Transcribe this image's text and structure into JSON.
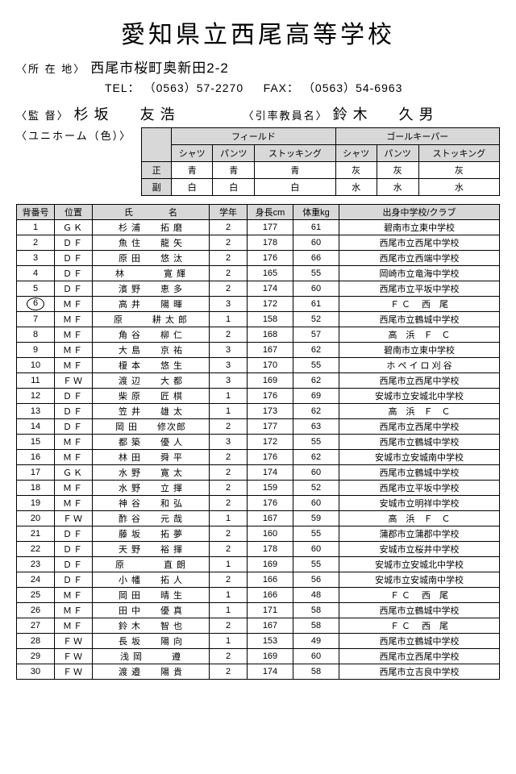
{
  "school_name": "愛知県立西尾高等学校",
  "address_label": "〈所 在 地〉",
  "address": "西尾市桜町奥新田2-2",
  "tel_label": "TEL：",
  "tel": "（0563）57-2270",
  "fax_label": "FAX：",
  "fax": "（0563）54-6963",
  "coach_label": "〈監 督〉",
  "coach_name": "杉 坂　　友 浩",
  "leader_label": "〈引率教員名〉",
  "leader_name": "鈴 木　　久 男",
  "uniform_label": "〈ユニホーム（色）〉",
  "uniform": {
    "group_headers": [
      "フィールド",
      "ゴールキーパー"
    ],
    "sub_headers": [
      "シャツ",
      "パンツ",
      "ストッキング",
      "シャツ",
      "パンツ",
      "ストッキング"
    ],
    "rows": [
      {
        "label": "正",
        "values": [
          "青",
          "青",
          "青",
          "灰",
          "灰",
          "灰"
        ]
      },
      {
        "label": "副",
        "values": [
          "白",
          "白",
          "白",
          "水",
          "水",
          "水"
        ]
      }
    ]
  },
  "roster_headers": {
    "num": "背番号",
    "pos": "位置",
    "name": "氏　　　　名",
    "grade": "学年",
    "height": "身長cm",
    "weight": "体重kg",
    "origin": "出身中学校/クラブ"
  },
  "roster": [
    {
      "num": "1",
      "captain": false,
      "pos": "ＧＫ",
      "name": "杉 浦　　拓 磨",
      "grade": "2",
      "h": "177",
      "w": "61",
      "origin": "碧南市立東中学校"
    },
    {
      "num": "2",
      "captain": false,
      "pos": "ＤＦ",
      "name": "魚 住　　龍 矢",
      "grade": "2",
      "h": "178",
      "w": "60",
      "origin": "西尾市立西尾中学校"
    },
    {
      "num": "3",
      "captain": false,
      "pos": "ＤＦ",
      "name": "原 田　　悠 汰",
      "grade": "2",
      "h": "176",
      "w": "66",
      "origin": "西尾市立西端中学校"
    },
    {
      "num": "4",
      "captain": false,
      "pos": "ＤＦ",
      "name": "林　　　　寛 輝",
      "grade": "2",
      "h": "165",
      "w": "55",
      "origin": "岡崎市立竜海中学校"
    },
    {
      "num": "5",
      "captain": false,
      "pos": "ＤＦ",
      "name": "濱 野　　恵 多",
      "grade": "2",
      "h": "174",
      "w": "60",
      "origin": "西尾市立平坂中学校"
    },
    {
      "num": "6",
      "captain": true,
      "pos": "ＭＦ",
      "name": "高 井　　陽 暉",
      "grade": "3",
      "h": "172",
      "w": "61",
      "origin": "Ｆ Ｃ 　西　尾"
    },
    {
      "num": "7",
      "captain": false,
      "pos": "ＭＦ",
      "name": "原　　　耕 太 郎",
      "grade": "1",
      "h": "158",
      "w": "52",
      "origin": "西尾市立鶴城中学校"
    },
    {
      "num": "8",
      "captain": false,
      "pos": "ＭＦ",
      "name": "角 谷　　柳 仁",
      "grade": "2",
      "h": "168",
      "w": "57",
      "origin": "高　浜　Ｆ　Ｃ"
    },
    {
      "num": "9",
      "captain": false,
      "pos": "ＭＦ",
      "name": "大 島　　京 祐",
      "grade": "3",
      "h": "167",
      "w": "62",
      "origin": "碧南市立東中学校"
    },
    {
      "num": "10",
      "captain": false,
      "pos": "ＭＦ",
      "name": "榎 本　　悠 生",
      "grade": "3",
      "h": "170",
      "w": "55",
      "origin": "ホ ペ イ ロ 刈 谷"
    },
    {
      "num": "11",
      "captain": false,
      "pos": "ＦＷ",
      "name": "渡 辺　　大 都",
      "grade": "3",
      "h": "169",
      "w": "62",
      "origin": "西尾市立西尾中学校"
    },
    {
      "num": "12",
      "captain": false,
      "pos": "ＤＦ",
      "name": "柴 原　　匠 棋",
      "grade": "1",
      "h": "176",
      "w": "69",
      "origin": "安城市立安城北中学校"
    },
    {
      "num": "13",
      "captain": false,
      "pos": "ＤＦ",
      "name": "笠 井　　雄 太",
      "grade": "1",
      "h": "173",
      "w": "62",
      "origin": "高　浜　Ｆ　Ｃ"
    },
    {
      "num": "14",
      "captain": false,
      "pos": "ＤＦ",
      "name": "岡 田　　修次郎",
      "grade": "2",
      "h": "177",
      "w": "63",
      "origin": "西尾市立西尾中学校"
    },
    {
      "num": "15",
      "captain": false,
      "pos": "ＭＦ",
      "name": "都 築　　優 人",
      "grade": "3",
      "h": "172",
      "w": "55",
      "origin": "西尾市立鶴城中学校"
    },
    {
      "num": "16",
      "captain": false,
      "pos": "ＭＦ",
      "name": "林 田　　舜 平",
      "grade": "2",
      "h": "176",
      "w": "62",
      "origin": "安城市立安城南中学校"
    },
    {
      "num": "17",
      "captain": false,
      "pos": "ＧＫ",
      "name": "水 野　　寛 太",
      "grade": "2",
      "h": "174",
      "w": "60",
      "origin": "西尾市立鶴城中学校"
    },
    {
      "num": "18",
      "captain": false,
      "pos": "ＭＦ",
      "name": "水 野　　立 揮",
      "grade": "2",
      "h": "159",
      "w": "52",
      "origin": "西尾市立平坂中学校"
    },
    {
      "num": "19",
      "captain": false,
      "pos": "ＭＦ",
      "name": "神 谷　　和 弘",
      "grade": "2",
      "h": "176",
      "w": "60",
      "origin": "安城市立明祥中学校"
    },
    {
      "num": "20",
      "captain": false,
      "pos": "ＦＷ",
      "name": "酢 谷　　元 哉",
      "grade": "1",
      "h": "167",
      "w": "59",
      "origin": "高　浜　Ｆ　Ｃ"
    },
    {
      "num": "21",
      "captain": false,
      "pos": "ＤＦ",
      "name": "藤 坂　　拓 夢",
      "grade": "2",
      "h": "160",
      "w": "55",
      "origin": "蒲郡市立蒲郡中学校"
    },
    {
      "num": "22",
      "captain": false,
      "pos": "ＤＦ",
      "name": "天 野　　裕 揮",
      "grade": "2",
      "h": "178",
      "w": "60",
      "origin": "安城市立桜井中学校"
    },
    {
      "num": "23",
      "captain": false,
      "pos": "ＤＦ",
      "name": "原　　　　直 朗",
      "grade": "1",
      "h": "169",
      "w": "55",
      "origin": "安城市立安城北中学校"
    },
    {
      "num": "24",
      "captain": false,
      "pos": "ＤＦ",
      "name": "小 幡　　拓 人",
      "grade": "2",
      "h": "166",
      "w": "56",
      "origin": "安城市立安城南中学校"
    },
    {
      "num": "25",
      "captain": false,
      "pos": "ＭＦ",
      "name": "岡 田　　晴 生",
      "grade": "1",
      "h": "166",
      "w": "48",
      "origin": "Ｆ Ｃ 　西　尾"
    },
    {
      "num": "26",
      "captain": false,
      "pos": "ＭＦ",
      "name": "田 中　　優 真",
      "grade": "1",
      "h": "171",
      "w": "58",
      "origin": "西尾市立鶴城中学校"
    },
    {
      "num": "27",
      "captain": false,
      "pos": "ＭＦ",
      "name": "鈴 木　　智 也",
      "grade": "2",
      "h": "167",
      "w": "58",
      "origin": "Ｆ Ｃ 　西　尾"
    },
    {
      "num": "28",
      "captain": false,
      "pos": "ＦＷ",
      "name": "長 坂　　陽 向",
      "grade": "1",
      "h": "153",
      "w": "49",
      "origin": "西尾市立鶴城中学校"
    },
    {
      "num": "29",
      "captain": false,
      "pos": "ＦＷ",
      "name": "浅 岡　　　遵",
      "grade": "2",
      "h": "169",
      "w": "60",
      "origin": "西尾市立西尾中学校"
    },
    {
      "num": "30",
      "captain": false,
      "pos": "ＦＷ",
      "name": "渡 邉　　陽 貴",
      "grade": "2",
      "h": "174",
      "w": "58",
      "origin": "西尾市立吉良中学校"
    }
  ]
}
